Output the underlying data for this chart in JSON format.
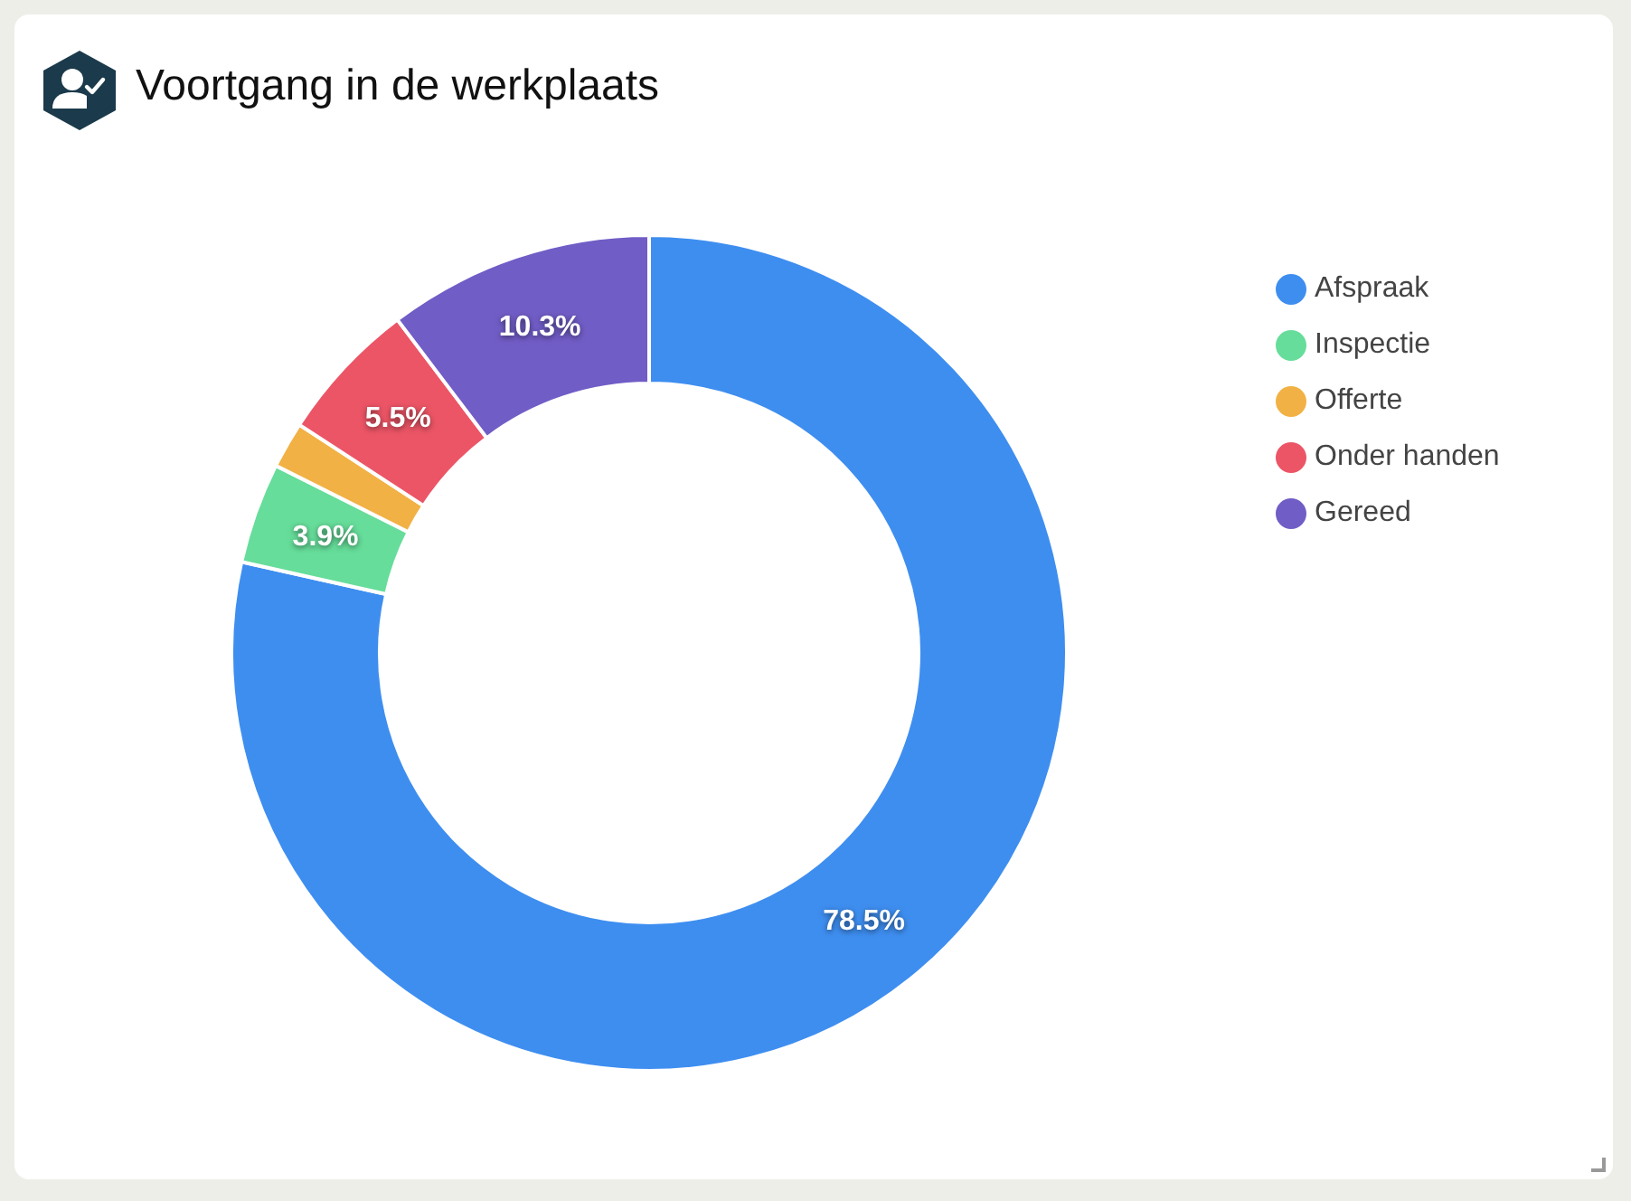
{
  "chart_data": {
    "type": "donut",
    "title": "Voortgang in de werkplaats",
    "categories": [
      "Afspraak",
      "Inspectie",
      "Offerte",
      "Onder handen",
      "Gereed"
    ],
    "values": [
      78.5,
      3.9,
      1.8,
      5.5,
      10.3
    ],
    "colors": [
      "#3e8ef0",
      "#66dd9a",
      "#f2b145",
      "#ec5566",
      "#715dc6"
    ],
    "value_labels": [
      "78.5%",
      "3.9%",
      null,
      "5.5%",
      "10.3%"
    ],
    "legend": "right"
  }
}
